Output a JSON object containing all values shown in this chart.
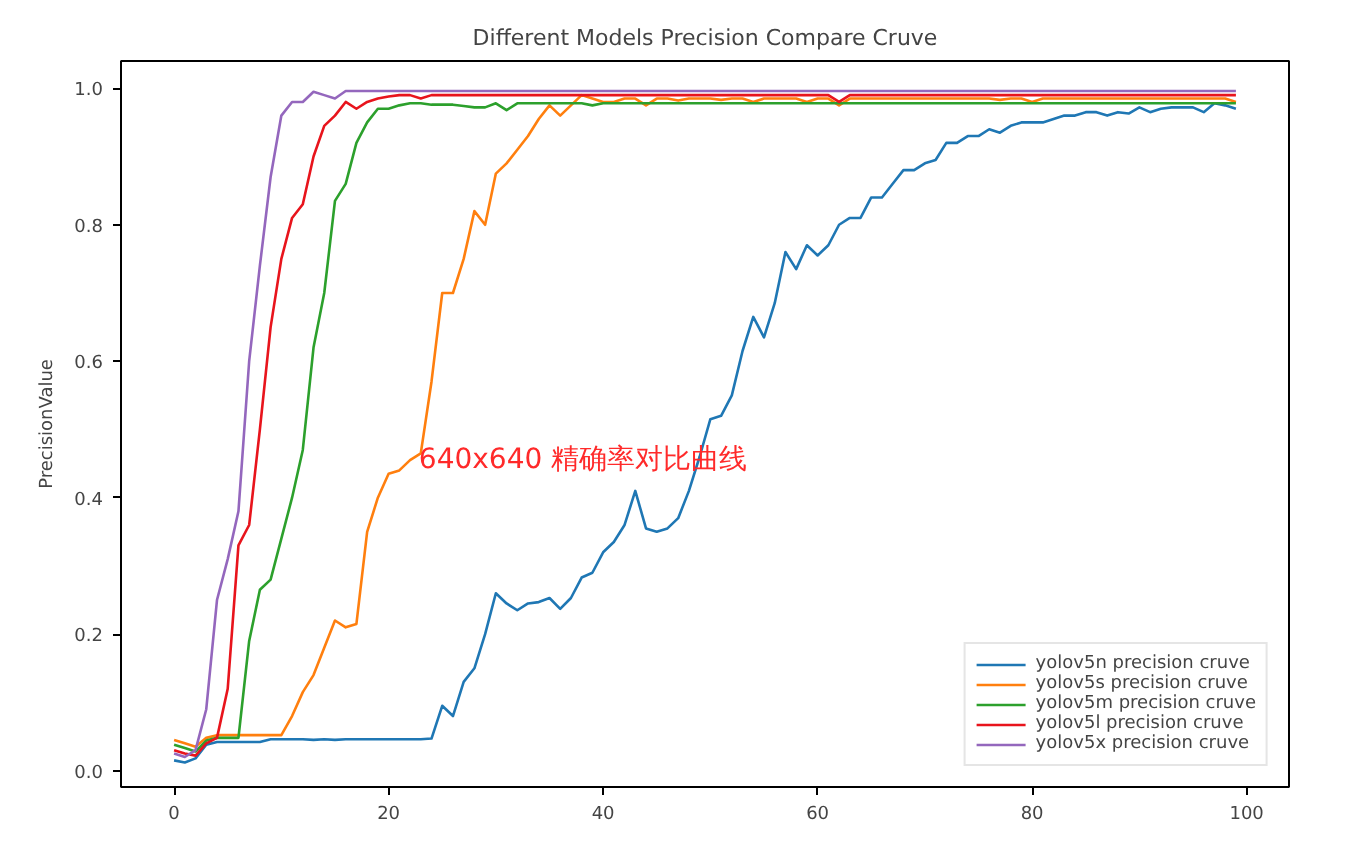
{
  "chart_data": {
    "type": "line",
    "title": "Different Models Precision Compare Cruve",
    "ylabel": "PrecisionValue",
    "annotations": [
      "640x640  精确率对比曲线"
    ],
    "xlim": [
      -4.95,
      103.95
    ],
    "ylim": [
      -0.024,
      1.04
    ],
    "xticks": [
      0,
      20,
      40,
      60,
      80,
      100
    ],
    "yticks": [
      {
        "value": 0,
        "label": "0.0"
      },
      {
        "value": 0.2,
        "label": "0.2"
      },
      {
        "value": 0.4,
        "label": "0.4"
      },
      {
        "value": 0.6,
        "label": "0.6"
      },
      {
        "value": 0.8,
        "label": "0.8"
      },
      {
        "value": 1.0,
        "label": "1.0"
      }
    ],
    "grid": false,
    "legend": "bottom right",
    "marker": "none",
    "line_style": "solid",
    "x": [
      0,
      1,
      2,
      3,
      4,
      5,
      6,
      7,
      8,
      9,
      10,
      11,
      12,
      13,
      14,
      15,
      16,
      17,
      18,
      19,
      20,
      21,
      22,
      23,
      24,
      25,
      26,
      27,
      28,
      29,
      30,
      31,
      32,
      33,
      34,
      35,
      36,
      37,
      38,
      39,
      40,
      41,
      42,
      43,
      44,
      45,
      46,
      47,
      48,
      49,
      50,
      51,
      52,
      53,
      54,
      55,
      56,
      57,
      58,
      59,
      60,
      61,
      62,
      63,
      64,
      65,
      66,
      67,
      68,
      69,
      70,
      71,
      72,
      73,
      74,
      75,
      76,
      77,
      78,
      79,
      80,
      81,
      82,
      83,
      84,
      85,
      86,
      87,
      88,
      89,
      90,
      91,
      92,
      93,
      94,
      95,
      96,
      97,
      98,
      99
    ],
    "series": [
      {
        "name": "yolov5n precision cruve",
        "color": "#1f77b4",
        "values": [
          0.015,
          0.012,
          0.018,
          0.038,
          0.042,
          0.042,
          0.042,
          0.042,
          0.042,
          0.046,
          0.046,
          0.046,
          0.046,
          0.045,
          0.046,
          0.045,
          0.046,
          0.046,
          0.046,
          0.046,
          0.046,
          0.046,
          0.046,
          0.046,
          0.047,
          0.095,
          0.08,
          0.13,
          0.15,
          0.2,
          0.26,
          0.245,
          0.235,
          0.245,
          0.247,
          0.253,
          0.237,
          0.253,
          0.283,
          0.29,
          0.32,
          0.335,
          0.36,
          0.41,
          0.355,
          0.35,
          0.355,
          0.37,
          0.41,
          0.46,
          0.515,
          0.52,
          0.55,
          0.615,
          0.665,
          0.635,
          0.685,
          0.76,
          0.735,
          0.77,
          0.755,
          0.77,
          0.8,
          0.81,
          0.81,
          0.84,
          0.84,
          0.86,
          0.88,
          0.88,
          0.89,
          0.895,
          0.92,
          0.92,
          0.93,
          0.93,
          0.94,
          0.935,
          0.945,
          0.95,
          0.95,
          0.95,
          0.955,
          0.96,
          0.96,
          0.965,
          0.965,
          0.96,
          0.965,
          0.963,
          0.972,
          0.965,
          0.97,
          0.972,
          0.972,
          0.972,
          0.965,
          0.978,
          0.975,
          0.97
        ]
      },
      {
        "name": "yolov5s precision cruve",
        "color": "#ff7f0e",
        "values": [
          0.045,
          0.04,
          0.035,
          0.048,
          0.052,
          0.052,
          0.052,
          0.052,
          0.052,
          0.052,
          0.052,
          0.08,
          0.115,
          0.14,
          0.18,
          0.22,
          0.21,
          0.215,
          0.35,
          0.4,
          0.435,
          0.44,
          0.455,
          0.465,
          0.57,
          0.7,
          0.7,
          0.75,
          0.82,
          0.8,
          0.875,
          0.89,
          0.91,
          0.93,
          0.955,
          0.975,
          0.96,
          0.975,
          0.99,
          0.985,
          0.98,
          0.98,
          0.985,
          0.985,
          0.975,
          0.985,
          0.985,
          0.982,
          0.985,
          0.985,
          0.985,
          0.983,
          0.985,
          0.985,
          0.98,
          0.985,
          0.985,
          0.985,
          0.985,
          0.98,
          0.985,
          0.985,
          0.975,
          0.985,
          0.985,
          0.985,
          0.985,
          0.985,
          0.985,
          0.985,
          0.985,
          0.985,
          0.985,
          0.985,
          0.985,
          0.985,
          0.985,
          0.983,
          0.985,
          0.985,
          0.98,
          0.985,
          0.985,
          0.985,
          0.985,
          0.985,
          0.985,
          0.985,
          0.985,
          0.985,
          0.985,
          0.985,
          0.985,
          0.985,
          0.985,
          0.985,
          0.985,
          0.985,
          0.985,
          0.98
        ]
      },
      {
        "name": "yolov5m precision cruve",
        "color": "#2ca02c",
        "values": [
          0.038,
          0.033,
          0.028,
          0.044,
          0.048,
          0.048,
          0.048,
          0.19,
          0.265,
          0.28,
          0.34,
          0.4,
          0.47,
          0.62,
          0.7,
          0.835,
          0.86,
          0.92,
          0.95,
          0.97,
          0.97,
          0.975,
          0.978,
          0.978,
          0.976,
          0.976,
          0.976,
          0.974,
          0.972,
          0.972,
          0.978,
          0.968,
          0.978,
          0.978,
          0.978,
          0.978,
          0.978,
          0.978,
          0.978,
          0.975,
          0.978,
          0.978,
          0.978,
          0.978,
          0.978,
          0.978,
          0.978,
          0.978,
          0.978,
          0.978,
          0.978,
          0.978,
          0.978,
          0.978,
          0.978,
          0.978,
          0.978,
          0.978,
          0.978,
          0.978,
          0.978,
          0.978,
          0.978,
          0.978,
          0.978,
          0.978,
          0.978,
          0.978,
          0.978,
          0.978,
          0.978,
          0.978,
          0.978,
          0.978,
          0.978,
          0.978,
          0.978,
          0.978,
          0.978,
          0.978,
          0.978,
          0.978,
          0.978,
          0.978,
          0.978,
          0.978,
          0.978,
          0.978,
          0.978,
          0.978,
          0.978,
          0.978,
          0.978,
          0.978,
          0.978,
          0.978,
          0.978,
          0.978,
          0.978,
          0.978
        ]
      },
      {
        "name": "yolov5l precision cruve",
        "color": "#e8141c",
        "values": [
          0.03,
          0.025,
          0.022,
          0.04,
          0.048,
          0.12,
          0.33,
          0.36,
          0.5,
          0.65,
          0.75,
          0.81,
          0.83,
          0.9,
          0.945,
          0.96,
          0.98,
          0.97,
          0.98,
          0.985,
          0.988,
          0.99,
          0.99,
          0.985,
          0.99,
          0.99,
          0.99,
          0.99,
          0.99,
          0.99,
          0.99,
          0.99,
          0.99,
          0.99,
          0.99,
          0.99,
          0.99,
          0.99,
          0.99,
          0.99,
          0.99,
          0.99,
          0.99,
          0.99,
          0.99,
          0.99,
          0.99,
          0.99,
          0.99,
          0.99,
          0.99,
          0.99,
          0.99,
          0.99,
          0.99,
          0.99,
          0.99,
          0.99,
          0.99,
          0.99,
          0.99,
          0.99,
          0.98,
          0.99,
          0.99,
          0.99,
          0.99,
          0.99,
          0.99,
          0.99,
          0.99,
          0.99,
          0.99,
          0.99,
          0.99,
          0.99,
          0.99,
          0.99,
          0.99,
          0.99,
          0.99,
          0.99,
          0.99,
          0.99,
          0.99,
          0.99,
          0.99,
          0.99,
          0.99,
          0.99,
          0.99,
          0.99,
          0.99,
          0.99,
          0.99,
          0.99,
          0.99,
          0.99,
          0.99,
          0.99
        ]
      },
      {
        "name": "yolov5x precision cruve",
        "color": "#9467bd",
        "values": [
          0.025,
          0.02,
          0.03,
          0.09,
          0.25,
          0.31,
          0.38,
          0.6,
          0.74,
          0.87,
          0.96,
          0.98,
          0.98,
          0.995,
          0.99,
          0.985,
          0.996,
          0.996,
          0.996,
          0.996,
          0.996,
          0.996,
          0.996,
          0.996,
          0.996,
          0.996,
          0.996,
          0.996,
          0.996,
          0.996,
          0.996,
          0.996,
          0.996,
          0.996,
          0.996,
          0.996,
          0.996,
          0.996,
          0.996,
          0.996,
          0.996,
          0.996,
          0.996,
          0.996,
          0.996,
          0.996,
          0.996,
          0.996,
          0.996,
          0.996,
          0.996,
          0.996,
          0.996,
          0.996,
          0.996,
          0.996,
          0.996,
          0.996,
          0.996,
          0.996,
          0.996,
          0.996,
          0.996,
          0.996,
          0.996,
          0.996,
          0.996,
          0.996,
          0.996,
          0.996,
          0.996,
          0.996,
          0.996,
          0.996,
          0.996,
          0.996,
          0.996,
          0.996,
          0.996,
          0.996,
          0.996,
          0.996,
          0.996,
          0.996,
          0.996,
          0.996,
          0.996,
          0.996,
          0.996,
          0.996,
          0.996,
          0.996,
          0.996,
          0.996,
          0.996,
          0.996,
          0.996,
          0.996,
          0.996,
          0.996
        ]
      }
    ]
  }
}
